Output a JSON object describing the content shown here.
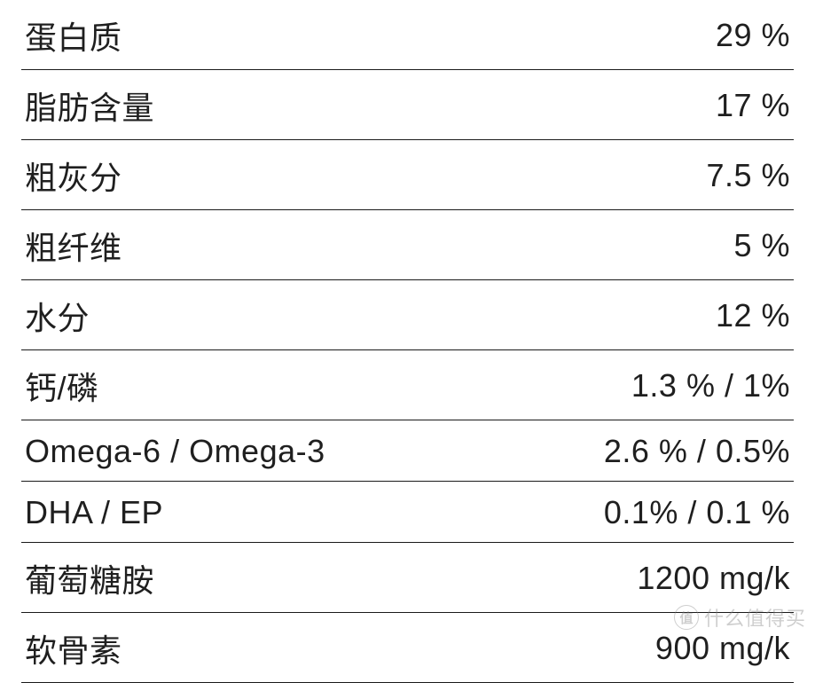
{
  "table": {
    "fontSize": 36,
    "textColor": "#1f1f1f",
    "borderColor": "#1a1a1a",
    "rows": [
      {
        "label": "蛋白质",
        "value": "29 %"
      },
      {
        "label": "脂肪含量",
        "value": "17 %"
      },
      {
        "label": "粗灰分",
        "value": "7.5 %"
      },
      {
        "label": "粗纤维",
        "value": "5 %"
      },
      {
        "label": "水分",
        "value": "12 %"
      },
      {
        "label": "钙/磷",
        "value": "1.3 % / 1%"
      },
      {
        "label": "Omega-6 / Omega-3",
        "value": "2.6 % / 0.5%"
      },
      {
        "label": "DHA / EP",
        "value": "0.1% / 0.1 %"
      },
      {
        "label": "葡萄糖胺",
        "value": "1200 mg/k"
      },
      {
        "label": "软骨素",
        "value": "900 mg/k"
      }
    ]
  },
  "watermark": {
    "icon": "值",
    "text": "什么值得买"
  }
}
